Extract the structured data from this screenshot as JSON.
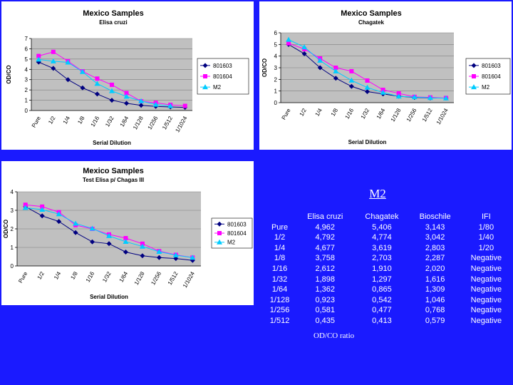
{
  "chart_data": [
    {
      "type": "line",
      "title": "Mexico Samples",
      "subtitle": "Elisa cruzi",
      "xlabel": "Serial Dilution",
      "ylabel": "OD/CO",
      "ylim": [
        0,
        7
      ],
      "ytick_step": 1,
      "categories": [
        "Pure",
        "1/2",
        "1/4",
        "1/8",
        "1/16",
        "1/32",
        "1/64",
        "1/128",
        "1/256",
        "1/512",
        "1/1024"
      ],
      "series": [
        {
          "name": "801603",
          "color": "#000080",
          "marker": "diamond",
          "values": [
            4.7,
            4.1,
            3.0,
            2.2,
            1.6,
            1.0,
            0.7,
            0.5,
            0.4,
            0.35,
            0.3
          ]
        },
        {
          "name": "801604",
          "color": "#ff00ff",
          "marker": "square",
          "values": [
            5.3,
            5.7,
            4.8,
            3.8,
            3.1,
            2.5,
            1.7,
            0.9,
            0.75,
            0.55,
            0.45
          ]
        },
        {
          "name": "M2",
          "color": "#00ccff",
          "marker": "triangle",
          "values": [
            4.96,
            4.79,
            4.68,
            3.76,
            2.61,
            1.9,
            1.36,
            0.92,
            0.58,
            0.44,
            null
          ]
        }
      ],
      "legend": "right"
    },
    {
      "type": "line",
      "title": "Mexico Samples",
      "subtitle": "Chagatek",
      "xlabel": "Serial Dilution",
      "ylabel": "OD/CO",
      "ylim": [
        0,
        6
      ],
      "ytick_step": 1,
      "categories": [
        "Pure",
        "1/2",
        "1/4",
        "1/8",
        "1/16",
        "1/32",
        "1/64",
        "1/128",
        "1/256",
        "1/512",
        "1/1024"
      ],
      "series": [
        {
          "name": "801603",
          "color": "#000080",
          "marker": "diamond",
          "values": [
            5.0,
            4.2,
            3.0,
            2.1,
            1.4,
            0.95,
            0.75,
            0.55,
            0.45,
            0.4,
            0.4
          ]
        },
        {
          "name": "801604",
          "color": "#ff00ff",
          "marker": "square",
          "values": [
            5.1,
            4.6,
            3.8,
            3.0,
            2.7,
            1.9,
            1.1,
            0.8,
            0.5,
            0.45,
            0.4
          ]
        },
        {
          "name": "M2",
          "color": "#00ccff",
          "marker": "triangle",
          "values": [
            5.41,
            4.77,
            3.62,
            2.7,
            1.91,
            1.3,
            0.87,
            0.54,
            0.48,
            0.41,
            0.38
          ]
        }
      ],
      "legend": "right"
    },
    {
      "type": "line",
      "title": "Mexico Samples",
      "subtitle": "Test Elisa p/ Chagas III",
      "xlabel": "Serial Dilution",
      "ylabel": "OD/CO",
      "ylim": [
        0,
        4
      ],
      "ytick_step": 1,
      "categories": [
        "Pure",
        "1/2",
        "1/4",
        "1/8",
        "1/16",
        "1/32",
        "1/64",
        "1/128",
        "1/256",
        "1/512",
        "1/1024"
      ],
      "series": [
        {
          "name": "801603",
          "color": "#000080",
          "marker": "diamond",
          "values": [
            3.2,
            2.7,
            2.4,
            1.8,
            1.3,
            1.2,
            0.75,
            0.55,
            0.45,
            0.4,
            0.3
          ]
        },
        {
          "name": "801604",
          "color": "#ff00ff",
          "marker": "square",
          "values": [
            3.3,
            3.2,
            2.9,
            2.2,
            2.0,
            1.7,
            1.5,
            1.2,
            0.8,
            0.6,
            0.45
          ]
        },
        {
          "name": "M2",
          "color": "#00ccff",
          "marker": "triangle",
          "values": [
            3.14,
            3.04,
            2.8,
            2.29,
            2.02,
            1.62,
            1.31,
            1.05,
            0.77,
            0.58,
            0.45
          ]
        }
      ],
      "legend": "right"
    }
  ],
  "m2_table": {
    "title": "M2",
    "columns": [
      "",
      "Elisa cruzi",
      "Chagatek",
      "Bioschile",
      "IFI"
    ],
    "rows": [
      [
        "Pure",
        "4,962",
        "5,406",
        "3,143",
        "1/80"
      ],
      [
        "1/2",
        "4,792",
        "4,774",
        "3,042",
        "1/40"
      ],
      [
        "1/4",
        "4,677",
        "3,619",
        "2,803",
        "1/20"
      ],
      [
        "1/8",
        "3,758",
        "2,703",
        "2,287",
        "Negative"
      ],
      [
        "1/16",
        "2,612",
        "1,910",
        "2,020",
        "Negative"
      ],
      [
        "1/32",
        "1,898",
        "1,297",
        "1,616",
        "Negative"
      ],
      [
        "1/64",
        "1,362",
        "0,865",
        "1,309",
        "Negative"
      ],
      [
        "1/128",
        "0,923",
        "0,542",
        "1,046",
        "Negative"
      ],
      [
        "1/256",
        "0,581",
        "0,477",
        "0,768",
        "Negative"
      ],
      [
        "1/512",
        "0,435",
        "0,413",
        "0,579",
        "Negative"
      ]
    ],
    "note": "OD/CO ratio"
  }
}
